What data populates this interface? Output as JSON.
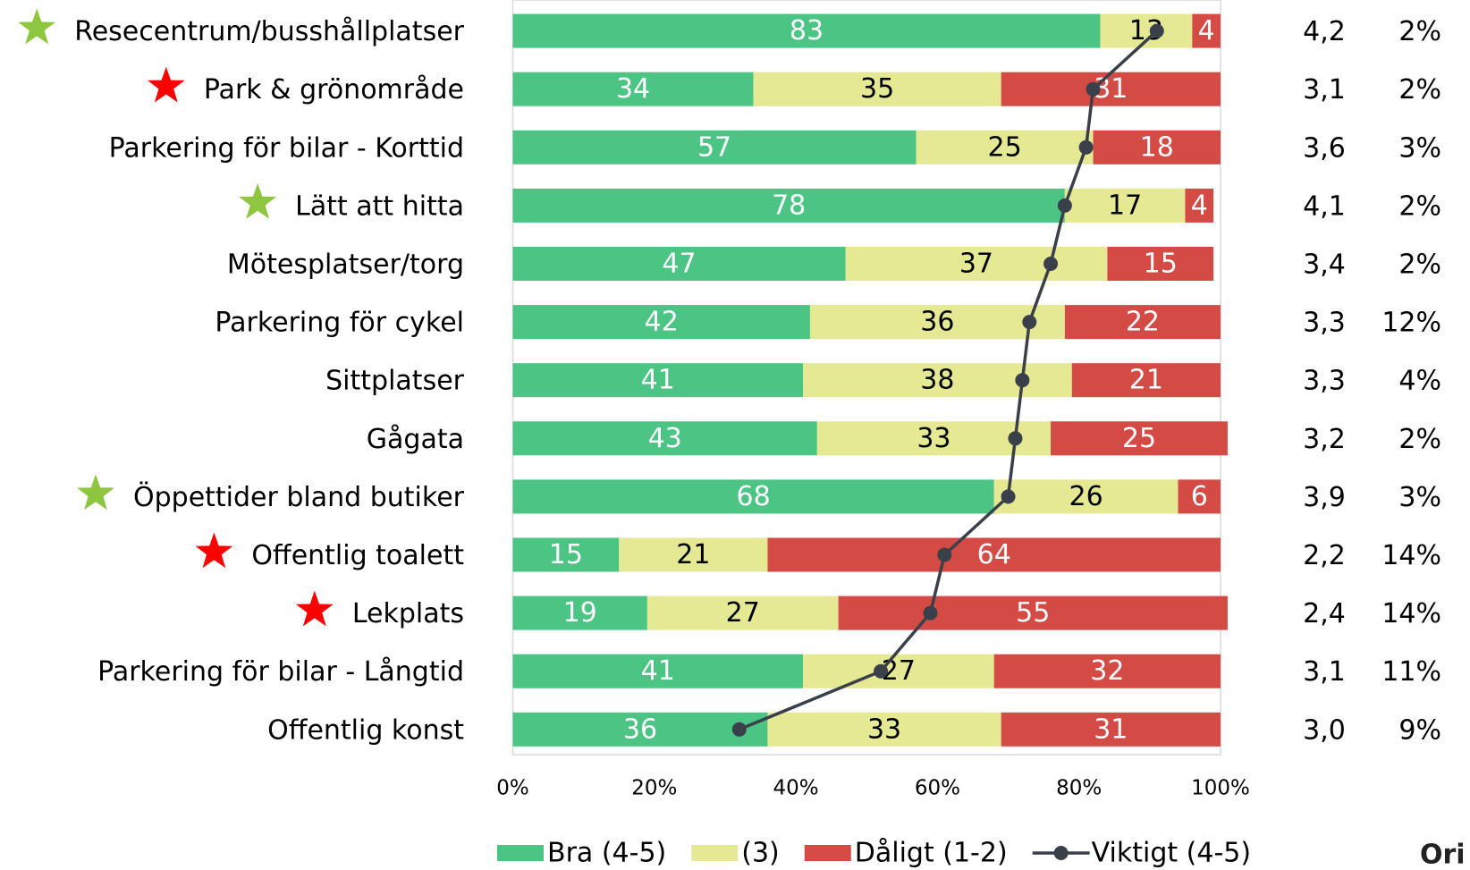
{
  "chart_data": {
    "type": "bar",
    "orientation": "horizontal",
    "stacked": true,
    "categories": [
      "Resecentrum/busshållplatser",
      "Park & grönområde",
      "Parkering för bilar - Korttid",
      "Lätt att hitta",
      "Mötesplatser/torg",
      "Parkering för cykel",
      "Sittplatser",
      "Gågata",
      "Öppettider bland butiker",
      "Offentlig toalett",
      "Lekplats",
      "Parkering för bilar - Långtid",
      "Offentlig konst"
    ],
    "stars": [
      "#8dc63f",
      "#ff0000",
      null,
      "#8dc63f",
      null,
      null,
      null,
      null,
      "#8dc63f",
      "#ff0000",
      "#ff0000",
      null,
      null
    ],
    "series": [
      {
        "name": "Bra (4-5)",
        "color": "#4cc584",
        "label_color": "#ffffff",
        "values": [
          83,
          34,
          57,
          78,
          47,
          42,
          41,
          43,
          68,
          15,
          19,
          41,
          36
        ]
      },
      {
        "name": "(3)",
        "color": "#e5e994",
        "label_color": "#000000",
        "values": [
          13,
          35,
          25,
          17,
          37,
          36,
          38,
          33,
          26,
          21,
          27,
          27,
          33
        ]
      },
      {
        "name": "Dåligt (1-2)",
        "color": "#d44b45",
        "label_color": "#ffffff",
        "values": [
          4,
          31,
          18,
          4,
          15,
          22,
          21,
          25,
          6,
          64,
          55,
          32,
          31
        ]
      },
      {
        "name": "Viktigt (4-5)",
        "type": "line",
        "color": "#3a4049",
        "values": [
          91,
          82,
          81,
          78,
          76,
          73,
          72,
          71,
          70,
          61,
          59,
          52,
          32
        ]
      }
    ],
    "averages": [
      "4,2",
      "3,1",
      "3,6",
      "4,1",
      "3,4",
      "3,3",
      "3,3",
      "3,2",
      "3,9",
      "2,2",
      "2,4",
      "3,1",
      "3,0"
    ],
    "shares": [
      "2%",
      "2%",
      "3%",
      "2%",
      "2%",
      "12%",
      "4%",
      "2%",
      "3%",
      "14%",
      "14%",
      "11%",
      "9%"
    ],
    "xlim": [
      0,
      100
    ],
    "xticks": [
      {
        "value": 0,
        "label": "0%"
      },
      {
        "value": 20,
        "label": "20%"
      },
      {
        "value": 40,
        "label": "40%"
      },
      {
        "value": 60,
        "label": "60%"
      },
      {
        "value": 80,
        "label": "80%"
      },
      {
        "value": 100,
        "label": "100%"
      }
    ],
    "footer_text": "Ori"
  }
}
